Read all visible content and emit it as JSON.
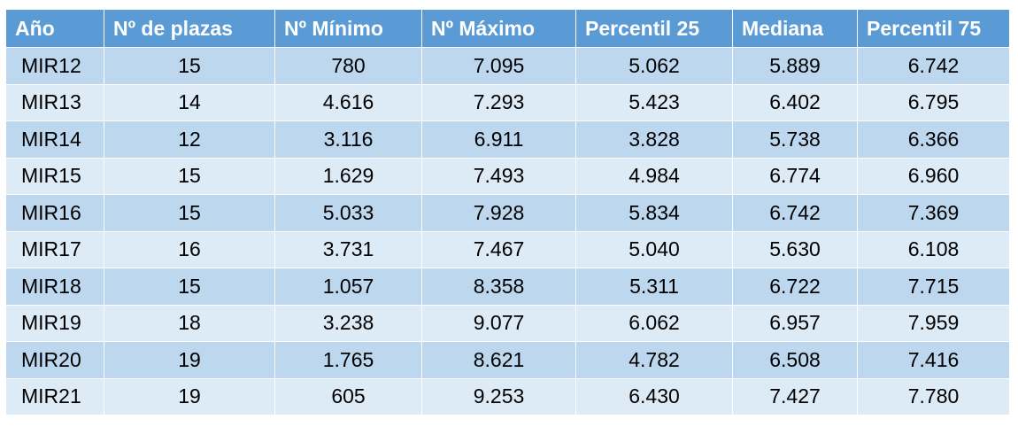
{
  "table": {
    "headers": [
      "Año",
      "Nº de plazas",
      "Nº Mínimo",
      "Nº Máximo",
      "Percentil 25",
      "Mediana",
      "Percentil 75"
    ],
    "rows": [
      [
        "MIR12",
        "15",
        "780",
        "7.095",
        "5.062",
        "5.889",
        "6.742"
      ],
      [
        "MIR13",
        "14",
        "4.616",
        "7.293",
        "5.423",
        "6.402",
        "6.795"
      ],
      [
        "MIR14",
        "12",
        "3.116",
        "6.911",
        "3.828",
        "5.738",
        "6.366"
      ],
      [
        "MIR15",
        "15",
        "1.629",
        "7.493",
        "4.984",
        "6.774",
        "6.960"
      ],
      [
        "MIR16",
        "15",
        "5.033",
        "7.928",
        "5.834",
        "6.742",
        "7.369"
      ],
      [
        "MIR17",
        "16",
        "3.731",
        "7.467",
        "5.040",
        "5.630",
        "6.108"
      ],
      [
        "MIR18",
        "15",
        "1.057",
        "8.358",
        "5.311",
        "6.722",
        "7.715"
      ],
      [
        "MIR19",
        "18",
        "3.238",
        "9.077",
        "6.062",
        "6.957",
        "7.959"
      ],
      [
        "MIR20",
        "19",
        "1.765",
        "8.621",
        "4.782",
        "6.508",
        "7.416"
      ],
      [
        "MIR21",
        "19",
        "605",
        "9.253",
        "6.430",
        "7.427",
        "7.780"
      ]
    ]
  },
  "colors": {
    "header_bg": "#5b9bd5",
    "header_text": "#ffffff",
    "row_dark": "#bdd7ee",
    "row_light": "#ddebf7"
  }
}
